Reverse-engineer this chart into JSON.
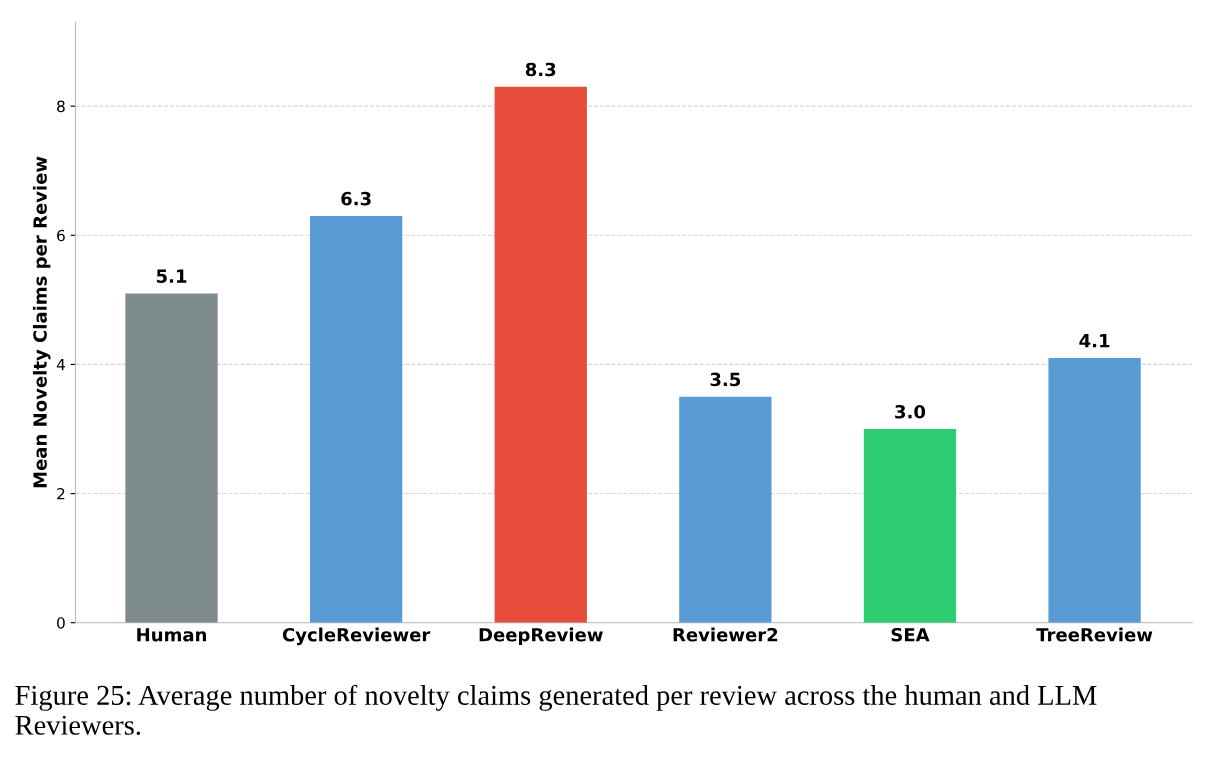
{
  "chart_data": {
    "type": "bar",
    "ylabel": "Mean Novelty Claims per Review",
    "categories": [
      "Human",
      "CycleReviewer",
      "DeepReview",
      "Reviewer2",
      "SEA",
      "TreeReview"
    ],
    "values": [
      5.1,
      6.3,
      8.3,
      3.5,
      3.0,
      4.1
    ],
    "colors": [
      "#7f8c8d",
      "#5b9bd5",
      "#e74c3c",
      "#5b9bd5",
      "#2ecc71",
      "#5b9bd5"
    ],
    "ylim": [
      0,
      9.3
    ],
    "yticks": [
      0,
      2,
      4,
      6,
      8
    ],
    "grid": "y",
    "value_labels": [
      "5.1",
      "6.3",
      "8.3",
      "3.5",
      "3.0",
      "4.1"
    ],
    "annotations": [
      "Figure 25: Average number of novelty claims generated per review across the human and LLM Reviewers."
    ]
  }
}
